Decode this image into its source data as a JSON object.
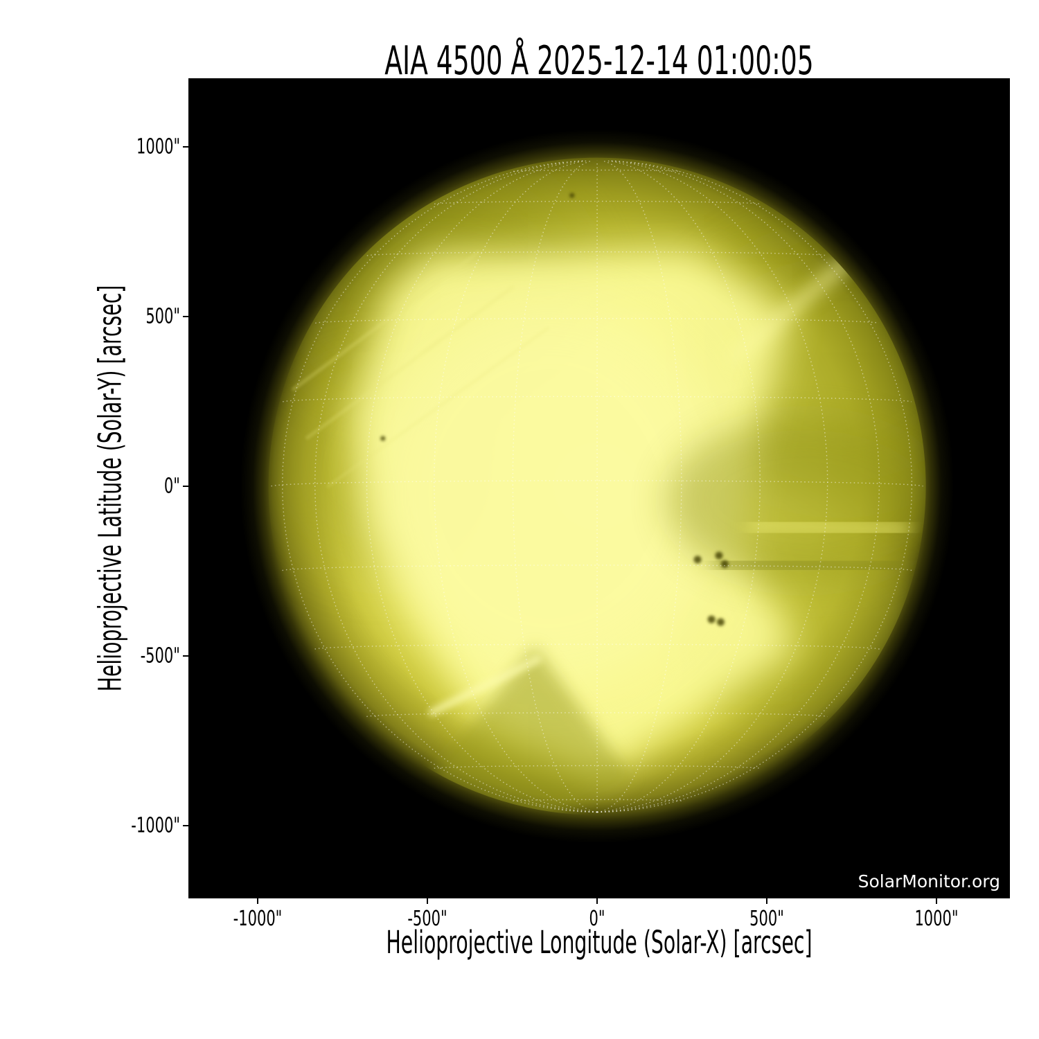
{
  "figure": {
    "title": "AIA 4500 Å 2025-12-14 01:00:05",
    "watermark": "SolarMonitor.org"
  },
  "x_axis": {
    "label": "Helioprojective Longitude (Solar-X) [arcsec]",
    "tick_labels": [
      "-1000\"",
      "-500\"",
      "0\"",
      "500\"",
      "1000\""
    ]
  },
  "y_axis": {
    "label": "Helioprojective Latitude (Solar-Y) [arcsec]",
    "tick_labels": [
      "1000\"",
      "500\"",
      "0\"",
      "-500\"",
      "-1000\""
    ]
  },
  "chart_data": {
    "type": "heatmap",
    "title": "AIA 4500 Å 2025-12-14 01:00:05",
    "instrument": "AIA",
    "wavelength": "4500 Å",
    "timestamp_shown": "2025-12-14 01:00:05",
    "xlabel": "Helioprojective Longitude (Solar-X) [arcsec]",
    "ylabel": "Helioprojective Latitude (Solar-Y) [arcsec]",
    "xlim": [
      -1204,
      1216
    ],
    "ylim": [
      -1214,
      1202
    ],
    "x_ticks": [
      -1000,
      -500,
      0,
      500,
      1000
    ],
    "y_ticks": [
      1000,
      500,
      0,
      -500,
      -1000
    ],
    "grid": true,
    "plot_background": "#000000",
    "solar_disk": {
      "center_arcsec": [
        0,
        0
      ],
      "radius_arcsec": 960,
      "heliographic_grid_spacing_deg": 15,
      "b0_deg": -1,
      "grid_line_color": "#ffffff",
      "colors": {
        "core": "#fafa8c",
        "mid": "#b4b624",
        "limb": "#63620f",
        "background": "#000000"
      }
    },
    "features": {
      "sunspots_arcsec": [
        [
          296,
          -216
        ],
        [
          359,
          -204
        ],
        [
          376,
          -229
        ],
        [
          337,
          -392
        ],
        [
          364,
          -400
        ],
        [
          -631,
          141
        ],
        [
          -74,
          857
        ]
      ]
    }
  }
}
